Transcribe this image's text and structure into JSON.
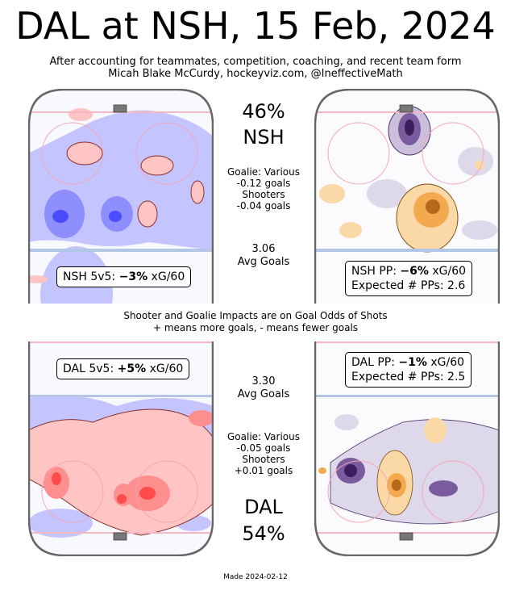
{
  "header": {
    "title": "DAL at NSH, 15 Feb, 2024",
    "subtitle_line1": "After accounting for teammates, competition, coaching, and recent team form",
    "subtitle_line2": "Micah Blake McCurdy, hockeyviz.com, @IneffectiveMath"
  },
  "top_center": {
    "pct": "46%",
    "team": "NSH",
    "goalie": "Goalie: Various",
    "goalie_val": "-0.12 goals",
    "shooters": "Shooters",
    "shooters_val": "-0.04 goals",
    "avg_val": "3.06",
    "avg_label": "Avg Goals"
  },
  "bottom_center": {
    "avg_val": "3.30",
    "avg_label": "Avg Goals",
    "goalie": "Goalie: Various",
    "goalie_val": "-0.05 goals",
    "shooters": "Shooters",
    "shooters_val": "+0.01 goals",
    "team": "DAL",
    "pct": "54%"
  },
  "middle_note": {
    "line1": "Shooter and Goalie Impacts are on Goal Odds of Shots",
    "line2": "+ means more goals, - means fewer goals"
  },
  "footer": {
    "made": "Made 2024-02-12"
  },
  "chart_data": [
    {
      "type": "heatmap",
      "team": "NSH",
      "situation": "5v5",
      "label_prefix": "NSH 5v5: ",
      "value_text": "−3%",
      "unit": " xG/60",
      "value": -3,
      "colormap": "blue=fewer, red=more"
    },
    {
      "type": "heatmap",
      "team": "NSH",
      "situation": "PP",
      "label_prefix": "NSH PP: ",
      "value_text": "−6%",
      "unit": " xG/60",
      "value": -6,
      "expected_pps_label": "Expected # PPs: 2.6",
      "expected_pps": 2.6,
      "colormap": "purple=fewer, orange=more"
    },
    {
      "type": "heatmap",
      "team": "DAL",
      "situation": "5v5",
      "label_prefix": "DAL 5v5: ",
      "value_text": "+5%",
      "unit": " xG/60",
      "value": 5,
      "colormap": "blue=fewer, red=more"
    },
    {
      "type": "heatmap",
      "team": "DAL",
      "situation": "PP",
      "label_prefix": "DAL PP: ",
      "value_text": "−1%",
      "unit": " xG/60",
      "value": -1,
      "expected_pps_label": "Expected # PPs: 2.5",
      "expected_pps": 2.5,
      "colormap": "purple=fewer, orange=more"
    }
  ],
  "colors": {
    "blue": "#7d7dff",
    "red": "#ff7d7d",
    "purple": "#6e4d94",
    "orange": "#f0a040",
    "rink_border": "#666666"
  }
}
